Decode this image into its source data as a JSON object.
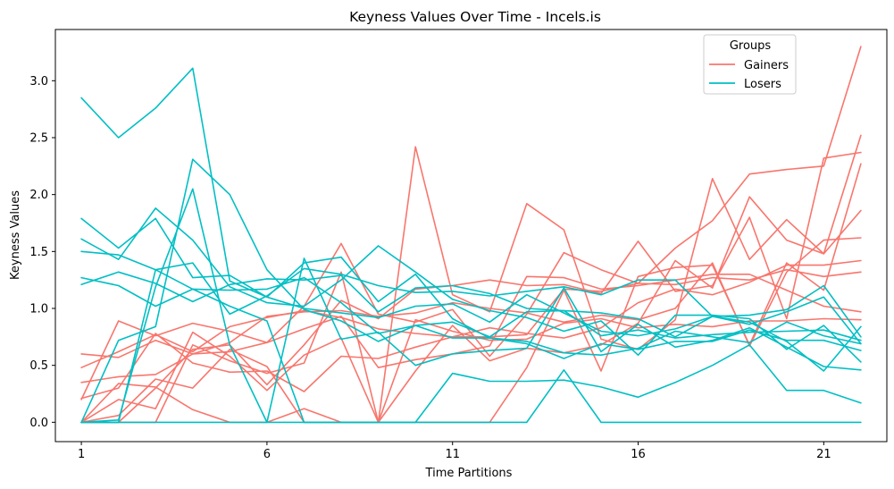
{
  "chart_data": {
    "type": "line",
    "title": "Keyness Values Over Time - Incels.is",
    "xlabel": "Time Partitions",
    "ylabel": "Keyness Values",
    "xlim": [
      0.3,
      22.7
    ],
    "ylim": [
      -0.17,
      3.45
    ],
    "xticks": [
      1,
      6,
      11,
      16,
      21
    ],
    "yticks": [
      0.0,
      0.5,
      1.0,
      1.5,
      2.0,
      2.5,
      3.0
    ],
    "ytick_labels": [
      "0.0",
      "0.5",
      "1.0",
      "1.5",
      "2.0",
      "2.5",
      "3.0"
    ],
    "grid": false,
    "legend": {
      "title": "Groups",
      "placement": "top-right",
      "entries": [
        {
          "label": "Gainers",
          "color": "#F8766D"
        },
        {
          "label": "Losers",
          "color": "#00BFC4"
        }
      ]
    },
    "x": [
      1,
      2,
      3,
      4,
      5,
      6,
      7,
      8,
      9,
      10,
      11,
      12,
      13,
      14,
      15,
      16,
      17,
      18,
      19,
      20,
      21,
      22
    ],
    "series": [
      {
        "group": "Gainers",
        "color": "#F8766D",
        "values": [
          0.6,
          0.57,
          0.72,
          0.6,
          0.62,
          0.7,
          1.02,
          1.57,
          0.95,
          0.88,
          0.99,
          0.58,
          0.95,
          1.49,
          1.34,
          1.22,
          1.21,
          1.27,
          1.25,
          1.34,
          1.28,
          1.32
        ]
      },
      {
        "group": "Gainers",
        "color": "#F8766D",
        "values": [
          0.48,
          0.62,
          0.77,
          0.62,
          0.84,
          0.92,
          0.98,
          0.92,
          0.82,
          0.78,
          0.75,
          0.83,
          0.78,
          0.74,
          0.83,
          1.05,
          1.17,
          1.12,
          1.23,
          1.38,
          1.38,
          1.42
        ]
      },
      {
        "group": "Gainers",
        "color": "#F8766D",
        "values": [
          0.2,
          0.89,
          0.76,
          0.87,
          0.8,
          0.7,
          0.82,
          0.93,
          0.48,
          0.55,
          0.6,
          0.67,
          1.28,
          1.27,
          1.17,
          1.2,
          1.25,
          1.3,
          1.3,
          1.16,
          1.02,
          0.97
        ]
      },
      {
        "group": "Gainers",
        "color": "#F8766D",
        "values": [
          0.35,
          0.4,
          0.42,
          0.6,
          0.7,
          0.93,
          0.97,
          0.98,
          0.93,
          0.96,
          1.05,
          1.0,
          0.96,
          0.88,
          0.94,
          0.9,
          1.0,
          1.4,
          0.67,
          1.32,
          1.6,
          1.62
        ]
      },
      {
        "group": "Gainers",
        "color": "#F8766D",
        "values": [
          0.21,
          0.3,
          0.78,
          0.52,
          0.44,
          0.45,
          0.27,
          0.58,
          0.56,
          0.66,
          0.75,
          0.75,
          0.77,
          1.17,
          1.15,
          1.22,
          1.53,
          1.77,
          2.18,
          2.22,
          2.25,
          3.3
        ]
      },
      {
        "group": "Gainers",
        "color": "#F8766D",
        "values": [
          0.0,
          0.0,
          0.0,
          0.68,
          0.54,
          0.43,
          0.52,
          1.32,
          0.0,
          0.45,
          0.85,
          0.54,
          0.65,
          0.61,
          0.68,
          0.87,
          1.42,
          1.18,
          1.98,
          1.6,
          1.48,
          2.52
        ]
      },
      {
        "group": "Gainers",
        "color": "#F8766D",
        "values": [
          0.0,
          0.0,
          0.3,
          0.64,
          0.68,
          0.33,
          0.68,
          1.07,
          0.91,
          1.17,
          1.2,
          1.25,
          1.2,
          1.21,
          1.13,
          1.59,
          1.15,
          1.2,
          1.8,
          0.91,
          2.32,
          2.37
        ]
      },
      {
        "group": "Gainers",
        "color": "#F8766D",
        "values": [
          0.0,
          0.06,
          0.38,
          0.3,
          0.64,
          0.49,
          0.0,
          0.0,
          0.0,
          2.42,
          1.12,
          0.97,
          1.92,
          1.69,
          0.73,
          0.64,
          0.9,
          2.14,
          1.43,
          1.78,
          1.48,
          1.86
        ]
      },
      {
        "group": "Gainers",
        "color": "#F8766D",
        "values": [
          0.0,
          0.2,
          0.12,
          0.79,
          0.58,
          0.28,
          0.59,
          0.74,
          0.0,
          0.9,
          0.8,
          0.72,
          0.73,
          0.87,
          0.91,
          0.83,
          0.86,
          0.84,
          0.89,
          0.89,
          0.91,
          0.9
        ]
      },
      {
        "group": "Gainers",
        "color": "#F8766D",
        "values": [
          0.0,
          0.34,
          0.31,
          0.11,
          0.0,
          0.0,
          0.12,
          0.0,
          0.0,
          0.0,
          0.0,
          0.0,
          0.48,
          1.16,
          0.45,
          1.28,
          1.36,
          1.38,
          0.68,
          1.4,
          1.16,
          2.27
        ]
      },
      {
        "group": "Losers",
        "color": "#00BFC4",
        "values": [
          2.85,
          2.5,
          2.76,
          3.11,
          1.24,
          1.1,
          1.0,
          0.96,
          0.92,
          1.02,
          1.04,
          0.88,
          1.12,
          0.96,
          0.8,
          0.76,
          0.82,
          0.93,
          0.86,
          0.97,
          1.1,
          0.69
        ]
      },
      {
        "group": "Losers",
        "color": "#00BFC4",
        "values": [
          1.79,
          1.53,
          1.79,
          1.27,
          1.29,
          1.1,
          1.4,
          1.45,
          1.06,
          1.3,
          0.91,
          0.74,
          0.69,
          0.56,
          0.69,
          0.64,
          0.71,
          0.71,
          0.81,
          0.72,
          0.72,
          0.63
        ]
      },
      {
        "group": "Losers",
        "color": "#00BFC4",
        "values": [
          1.61,
          1.43,
          1.88,
          1.6,
          1.19,
          1.05,
          1.02,
          1.25,
          1.55,
          1.32,
          1.08,
          0.98,
          0.92,
          0.8,
          0.89,
          0.59,
          0.94,
          0.94,
          0.91,
          0.64,
          0.85,
          0.53
        ]
      },
      {
        "group": "Losers",
        "color": "#00BFC4",
        "values": [
          1.5,
          1.47,
          1.34,
          1.4,
          0.95,
          1.11,
          1.35,
          1.3,
          1.2,
          1.14,
          1.15,
          1.11,
          1.15,
          1.19,
          1.12,
          1.25,
          1.25,
          0.93,
          0.94,
          0.99,
          1.2,
          0.75
        ]
      },
      {
        "group": "Losers",
        "color": "#00BFC4",
        "values": [
          1.27,
          1.2,
          1.02,
          1.17,
          1.16,
          1.17,
          1.27,
          1.05,
          0.78,
          0.85,
          0.88,
          0.75,
          0.97,
          0.98,
          0.76,
          0.81,
          0.74,
          0.77,
          0.79,
          0.8,
          0.81,
          0.72
        ]
      },
      {
        "group": "Losers",
        "color": "#00BFC4",
        "values": [
          1.21,
          1.32,
          1.22,
          1.06,
          1.21,
          1.26,
          1.25,
          1.29,
          0.97,
          1.18,
          1.2,
          1.13,
          1.0,
          0.98,
          0.96,
          0.91,
          0.75,
          0.93,
          0.88,
          0.71,
          0.45,
          0.84
        ]
      },
      {
        "group": "Losers",
        "color": "#00BFC4",
        "values": [
          0.0,
          0.72,
          0.84,
          2.31,
          2.0,
          1.34,
          0.99,
          0.89,
          0.71,
          0.85,
          0.74,
          0.74,
          0.71,
          0.61,
          0.59,
          0.65,
          0.8,
          0.75,
          0.7,
          0.88,
          0.76,
          0.69
        ]
      },
      {
        "group": "Losers",
        "color": "#00BFC4",
        "values": [
          0.0,
          0.02,
          1.19,
          2.05,
          0.68,
          0.0,
          1.44,
          0.73,
          0.79,
          0.5,
          0.6,
          0.63,
          0.65,
          1.18,
          0.62,
          0.86,
          0.66,
          0.72,
          0.83,
          0.66,
          0.49,
          0.46
        ]
      },
      {
        "group": "Losers",
        "color": "#00BFC4",
        "values": [
          0.0,
          0.0,
          1.34,
          1.17,
          1.02,
          0.89,
          0.0,
          0.0,
          0.0,
          0.0,
          0.43,
          0.36,
          0.36,
          0.37,
          0.31,
          0.22,
          0.35,
          0.5,
          0.68,
          0.28,
          0.28,
          0.17
        ]
      },
      {
        "group": "Losers",
        "color": "#00BFC4",
        "values": [
          0.0,
          0.0,
          0.0,
          0.0,
          0.0,
          0.0,
          0.0,
          0.0,
          0.0,
          0.0,
          0.0,
          0.0,
          0.0,
          0.46,
          0.0,
          0.0,
          0.0,
          0.0,
          0.0,
          0.0,
          0.0,
          0.0
        ]
      }
    ]
  }
}
